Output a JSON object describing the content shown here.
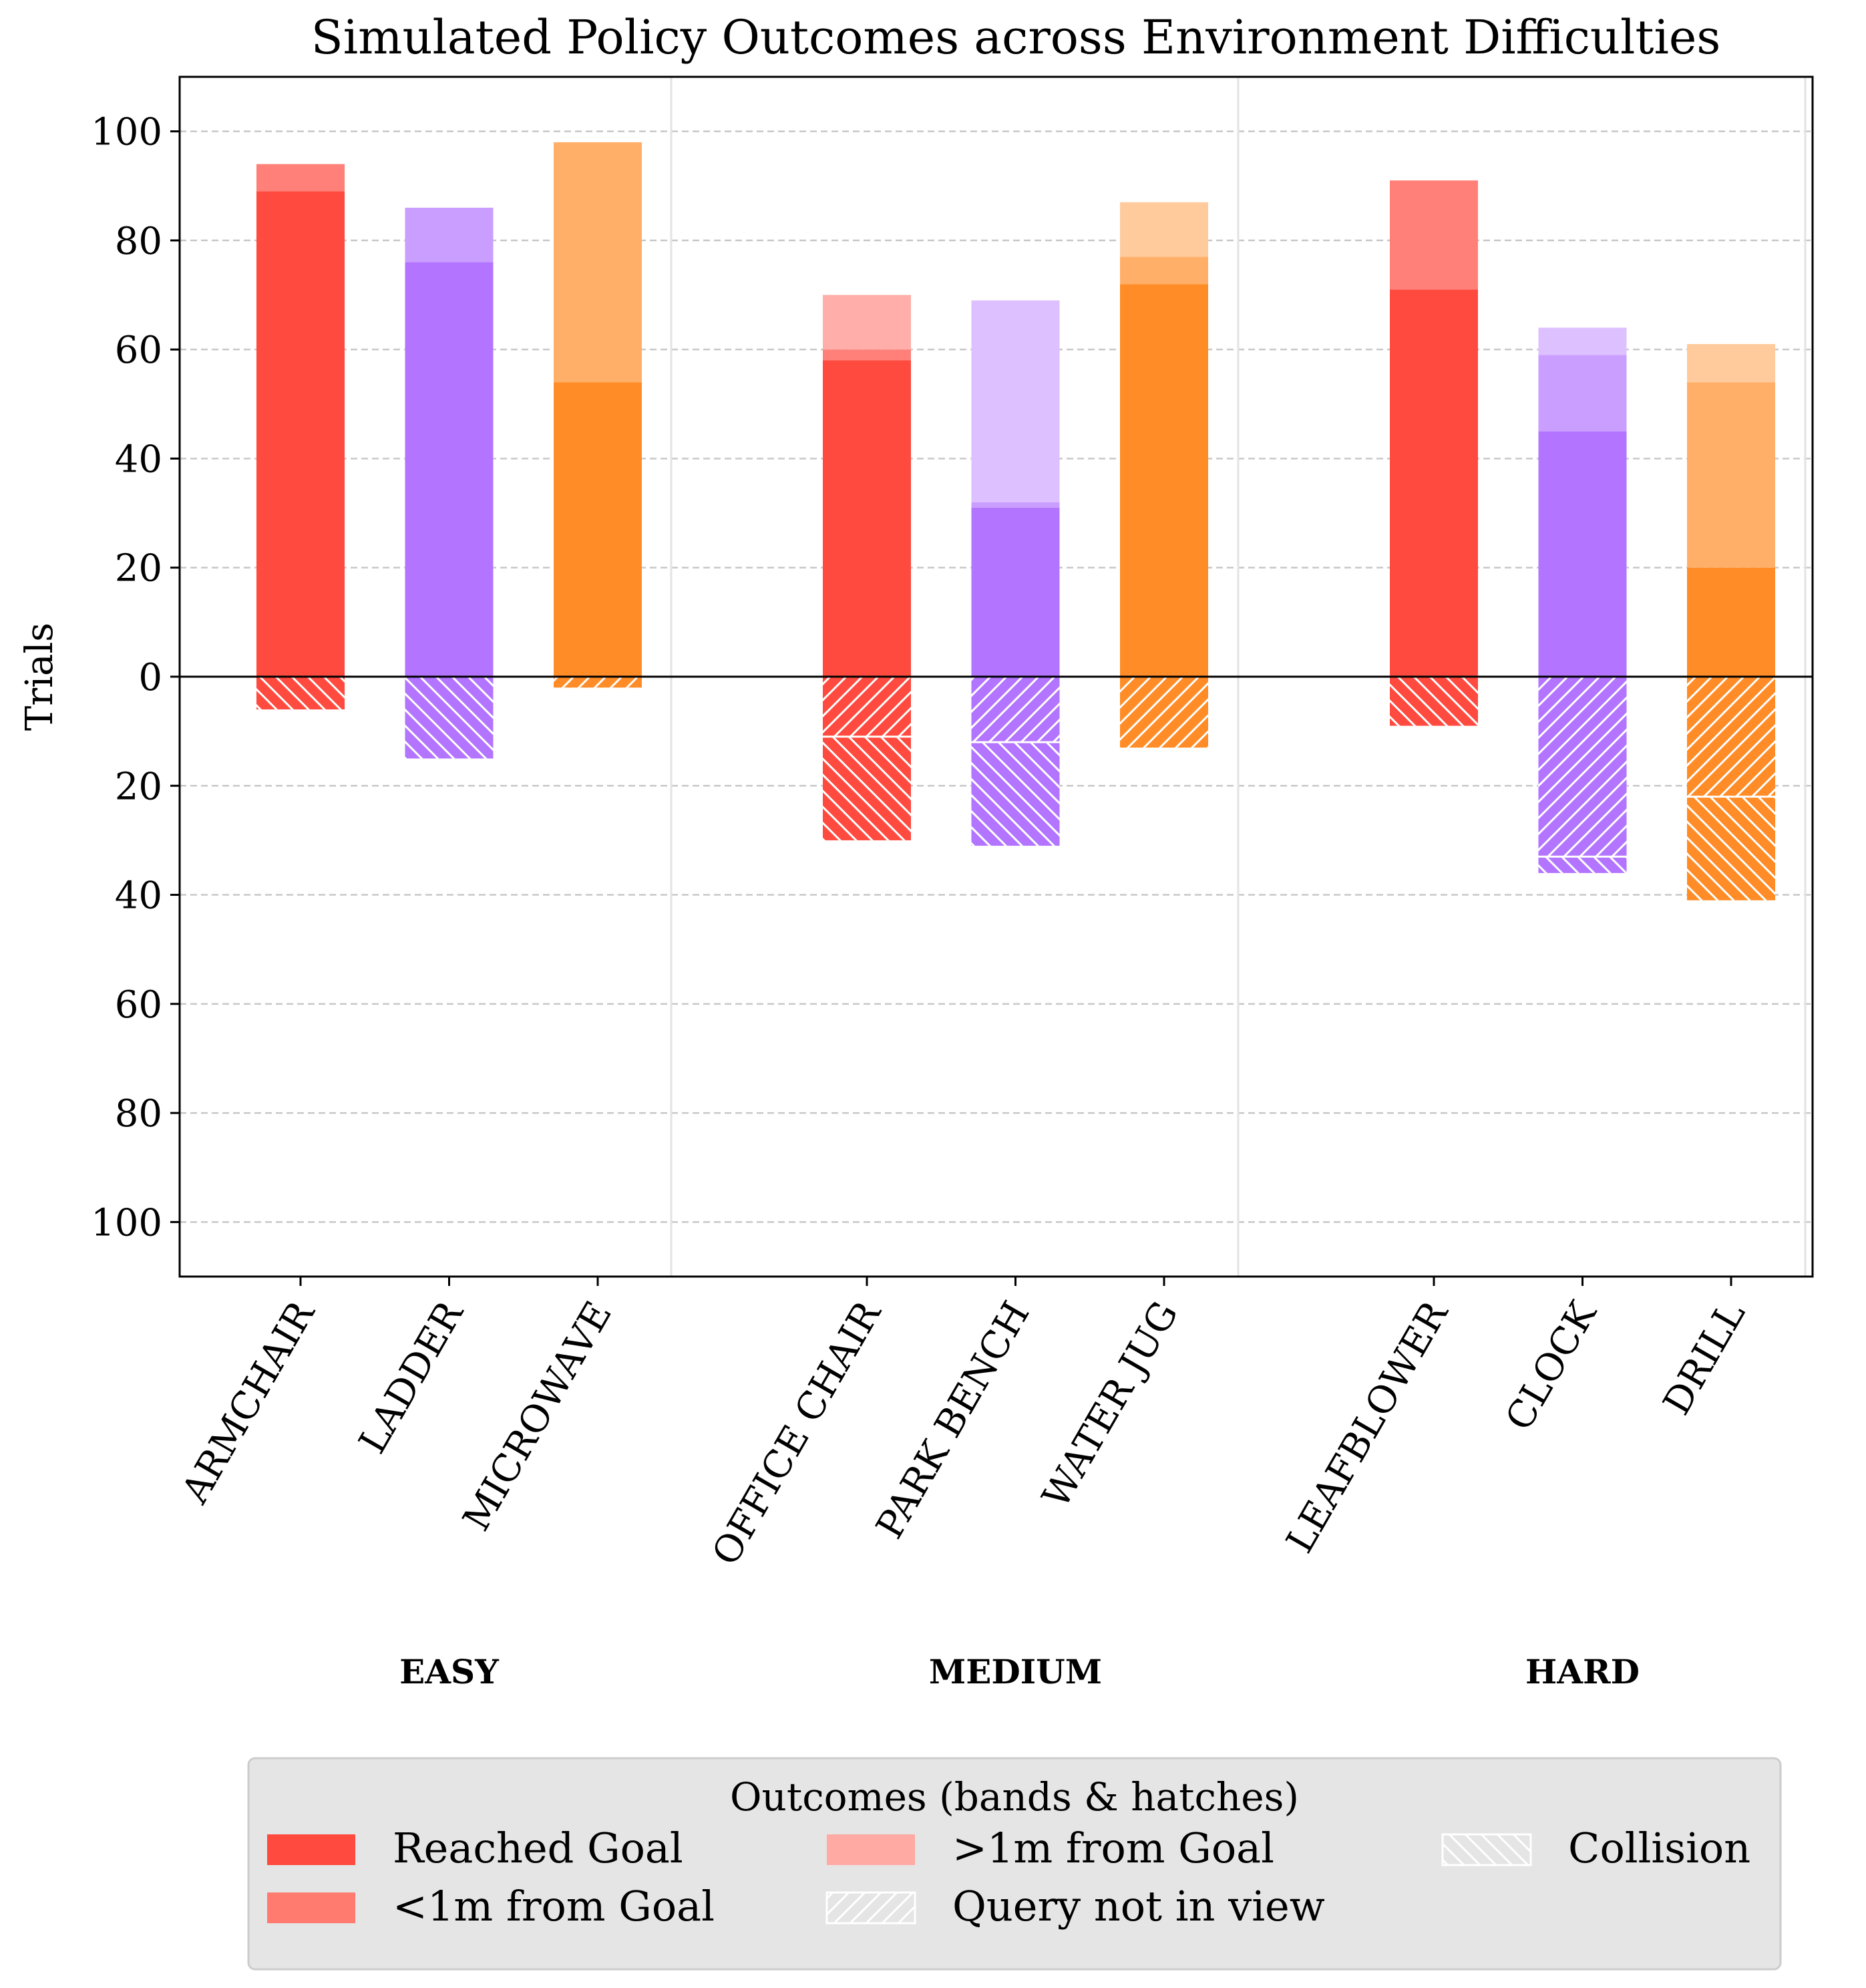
{
  "chart_data": {
    "type": "bar",
    "title": "Simulated Policy Outcomes across Environment Difficulties",
    "ylabel": "Trials",
    "xlabel": "",
    "ylim": [
      -110,
      110
    ],
    "yticks": [
      100,
      80,
      60,
      40,
      20,
      0,
      20,
      40,
      60,
      80,
      100
    ],
    "grid": "y dashed",
    "groups": [
      {
        "label": "EASY",
        "categories": [
          "ARMCHAIR",
          "LADDER",
          "MICROWAVE"
        ]
      },
      {
        "label": "MEDIUM",
        "categories": [
          "OFFICE CHAIR",
          "PARK BENCH",
          "WATER JUG"
        ]
      },
      {
        "label": "HARD",
        "categories": [
          "LEAFBLOWER",
          "CLOCK",
          "DRILL"
        ]
      }
    ],
    "categories": [
      "ARMCHAIR",
      "LADDER",
      "MICROWAVE",
      "OFFICE CHAIR",
      "PARK BENCH",
      "WATER JUG",
      "LEAFBLOWER",
      "CLOCK",
      "DRILL"
    ],
    "bar_colors": [
      "#ff4a3f",
      "#b374ff",
      "#ff8c26",
      "#ff4a3f",
      "#b374ff",
      "#ff8c26",
      "#ff4a3f",
      "#b374ff",
      "#ff8c26"
    ],
    "series": [
      {
        "name": "Reached Goal",
        "direction": "up",
        "values": [
          89,
          76,
          54,
          58,
          31,
          72,
          71,
          45,
          20
        ]
      },
      {
        "name": "<1m from Goal",
        "direction": "up",
        "values": [
          5,
          10,
          44,
          2,
          1,
          5,
          20,
          14,
          34
        ]
      },
      {
        "name": ">1m from Goal",
        "direction": "up",
        "values": [
          0,
          0,
          0,
          10,
          37,
          10,
          0,
          5,
          7
        ]
      },
      {
        "name": "Query not in view",
        "direction": "down",
        "values": [
          0,
          0,
          2,
          11,
          12,
          13,
          0,
          33,
          22
        ]
      },
      {
        "name": "Collision",
        "direction": "down",
        "values": [
          6,
          15,
          0,
          19,
          19,
          0,
          9,
          3,
          19
        ]
      }
    ],
    "legend": {
      "title": "Outcomes (bands & hatches)",
      "placement": "bottom-center",
      "items": [
        {
          "label": "Reached Goal",
          "swatch": "solid",
          "color": "#ff4a3f"
        },
        {
          "label": "<1m from Goal",
          "swatch": "solid",
          "color": "#ff7b70"
        },
        {
          "label": ">1m from Goal",
          "swatch": "solid",
          "color": "#ffaaa3"
        },
        {
          "label": "Query not in view",
          "swatch": "hatch-forward"
        },
        {
          "label": "Collision",
          "swatch": "hatch-back"
        }
      ]
    }
  }
}
